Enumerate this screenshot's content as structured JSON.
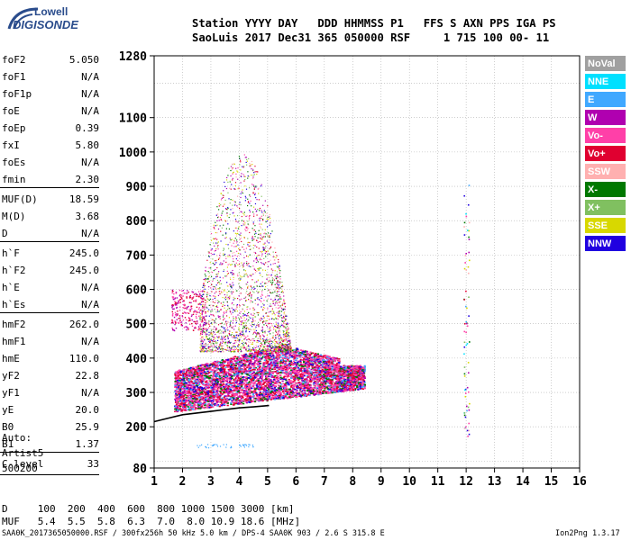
{
  "logo": {
    "brand": "Lowell",
    "name": "DIGISONDE"
  },
  "header": {
    "line1": "Station YYYY DAY   DDD HHMMSS P1   FFS S AXN PPS IGA PS",
    "line2": "SaoLuis 2017 Dec31 365 050000 RSF     1 715 100 00- 11"
  },
  "params": [
    {
      "name": "foF2",
      "value": "5.050"
    },
    {
      "name": "foF1",
      "value": "N/A"
    },
    {
      "name": "foF1p",
      "value": "N/A"
    },
    {
      "name": "foE",
      "value": "N/A"
    },
    {
      "name": "foEp",
      "value": "0.39"
    },
    {
      "name": "fxI",
      "value": "5.80"
    },
    {
      "name": "foEs",
      "value": "N/A"
    },
    {
      "name": "fmin",
      "value": "2.30"
    },
    {
      "name": "MUF(D)",
      "value": "18.59"
    },
    {
      "name": "M(D)",
      "value": "3.68"
    },
    {
      "name": "D",
      "value": "N/A"
    },
    {
      "name": "h`F",
      "value": "245.0"
    },
    {
      "name": "h`F2",
      "value": "245.0"
    },
    {
      "name": "h`E",
      "value": "N/A"
    },
    {
      "name": "h`Es",
      "value": "N/A"
    },
    {
      "name": "hmF2",
      "value": "262.0"
    },
    {
      "name": "hmF1",
      "value": "N/A"
    },
    {
      "name": "hmE",
      "value": "110.0"
    },
    {
      "name": "yF2",
      "value": "22.8"
    },
    {
      "name": "yF1",
      "value": "N/A"
    },
    {
      "name": "yE",
      "value": "20.0"
    },
    {
      "name": "B0",
      "value": "25.9"
    },
    {
      "name": "B1",
      "value": "1.37"
    },
    {
      "name": "C-level",
      "value": "33"
    }
  ],
  "auto": {
    "line1": "Auto:",
    "line2": "Artist5",
    "line3": "500200"
  },
  "legend": [
    {
      "label": "NoVal",
      "color": "#a0a0a0"
    },
    {
      "label": "NNE",
      "color": "#00e0ff"
    },
    {
      "label": "E",
      "color": "#40a8ff"
    },
    {
      "label": "W",
      "color": "#b000b0"
    },
    {
      "label": "Vo-",
      "color": "#ff40a8"
    },
    {
      "label": "Vo+",
      "color": "#e00030"
    },
    {
      "label": "SSW",
      "color": "#ffb0b0"
    },
    {
      "label": "X-",
      "color": "#007800"
    },
    {
      "label": "X+",
      "color": "#80c060"
    },
    {
      "label": "SSE",
      "color": "#d8d800"
    },
    {
      "label": "NNW",
      "color": "#2000e0"
    }
  ],
  "bottom": {
    "d_line": "D     100  200  400  600  800 1000 1500 3000 [km]",
    "muf_line": "MUF   5.4  5.5  5.8  6.3  7.0  8.0 10.9 18.6 [MHz]"
  },
  "footer": {
    "left": "SAA0K_2017365050000.RSF / 300fx256h 50 kHz 5.0 km / DPS-4 SAA0K 903 / 2.6 S 315.8 E",
    "right": "Ion2Png 1.3.17"
  },
  "chart_data": {
    "type": "scatter",
    "title": "",
    "xlabel": "",
    "ylabel": "",
    "x_unit": "MHz",
    "y_unit": "km",
    "xlim": [
      1,
      16
    ],
    "ylim": [
      80,
      1280
    ],
    "x_ticks": [
      1,
      2,
      3,
      4,
      5,
      6,
      7,
      8,
      9,
      10,
      11,
      12,
      13,
      14,
      15,
      16
    ],
    "y_ticks": [
      80,
      200,
      300,
      400,
      500,
      600,
      700,
      800,
      900,
      1000,
      1100,
      1280
    ],
    "grid": true,
    "trace_profile": {
      "name": "",
      "x": [
        1.0,
        1.5,
        2.0,
        2.5,
        3.0,
        3.5,
        4.0,
        4.5,
        5.05
      ],
      "y": [
        215,
        225,
        235,
        240,
        245,
        250,
        255,
        258,
        262
      ]
    },
    "echo_clusters": [
      {
        "x_range": [
          1.7,
          8.4
        ],
        "y_range": [
          250,
          420
        ],
        "density": "high"
      },
      {
        "x_range": [
          2.6,
          6.0
        ],
        "y_range": [
          420,
          1000
        ],
        "density": "medium"
      },
      {
        "x_range": [
          11.9,
          12.1
        ],
        "y_range": [
          140,
          910
        ],
        "density": "sparse"
      }
    ]
  }
}
